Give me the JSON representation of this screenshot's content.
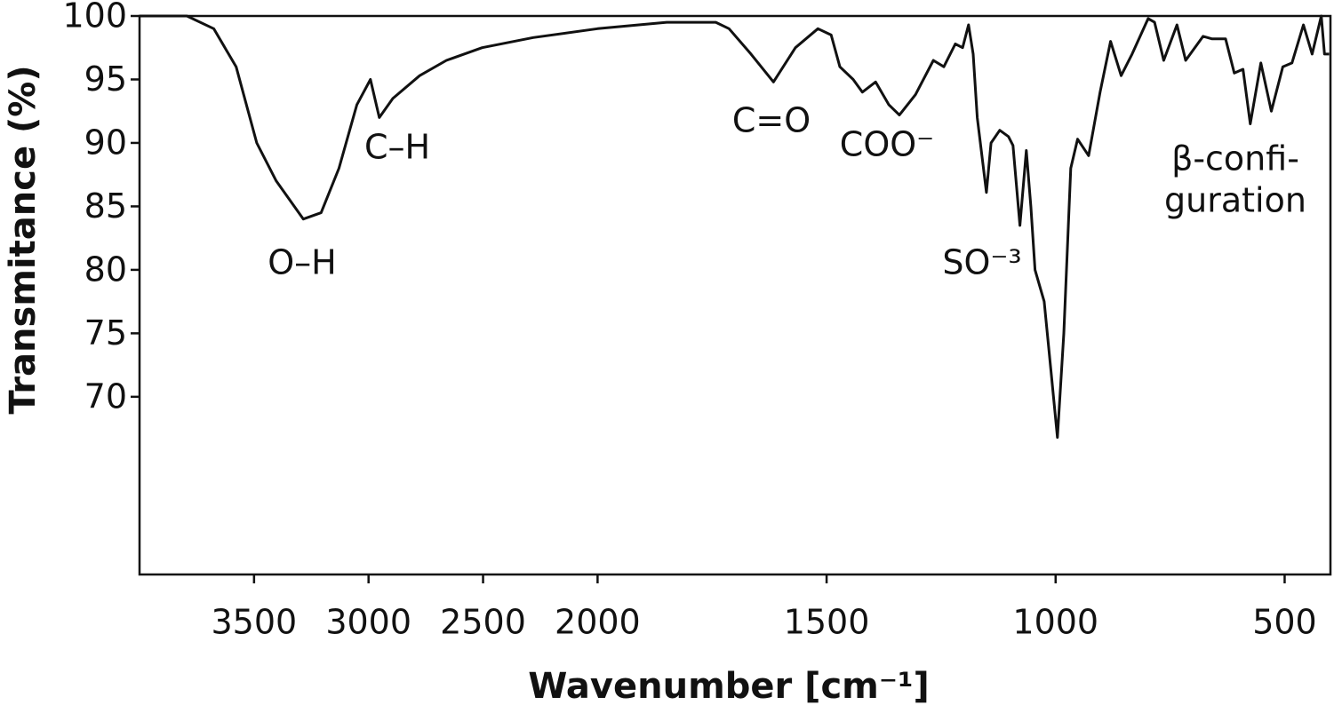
{
  "chart_data": {
    "type": "line",
    "xlabel": "Wavenumber [cm⁻¹]",
    "ylabel": "Transmitance (%)",
    "x": [
      4000,
      3793,
      3676,
      3578,
      3488,
      3403,
      3285,
      3207,
      3129,
      3051,
      2992,
      2953,
      2894,
      2777,
      2660,
      2504,
      2281,
      2000,
      1849,
      1742,
      1713,
      1665,
      1616,
      1568,
      1519,
      1490,
      1471,
      1442,
      1422,
      1393,
      1364,
      1341,
      1306,
      1267,
      1244,
      1219,
      1203,
      1190,
      1180,
      1171,
      1151,
      1141,
      1122,
      1103,
      1093,
      1078,
      1064,
      1054,
      1045,
      1025,
      1010,
      996,
      982,
      967,
      952,
      928,
      903,
      880,
      857,
      833,
      798,
      784,
      764,
      735,
      716,
      678,
      659,
      629,
      610,
      591,
      575,
      552,
      529,
      504,
      484,
      459,
      440,
      420,
      413,
      403
    ],
    "values": [
      100,
      100,
      99,
      96,
      90,
      87,
      84,
      84.5,
      88,
      93,
      95,
      92,
      93.5,
      95.3,
      96.5,
      97.5,
      98.3,
      99,
      99.5,
      99.5,
      99,
      97,
      94.8,
      97.5,
      99,
      98.5,
      96,
      95,
      94,
      94.8,
      93,
      92.2,
      93.8,
      96.5,
      96,
      97.8,
      97.5,
      99.3,
      97,
      92,
      86.1,
      90,
      91,
      90.5,
      89.8,
      83.5,
      89.4,
      85,
      80,
      77.5,
      72,
      66.8,
      75,
      88,
      90.3,
      89,
      94,
      98,
      95.3,
      97,
      99.8,
      99.5,
      96.5,
      99.3,
      96.5,
      98.4,
      98.2,
      98.2,
      95.5,
      95.8,
      91.5,
      96.3,
      92.5,
      96,
      96.3,
      99.3,
      97,
      100,
      97,
      97
    ],
    "color": "#111111",
    "xlim": [
      4000,
      400
    ],
    "x_scale_break": 2000,
    "xticks": [
      3500,
      3000,
      2500,
      2000,
      1500,
      1000,
      500
    ],
    "ylim": [
      56,
      100
    ],
    "yticks": [
      70,
      75,
      80,
      85,
      90,
      95,
      100
    ],
    "annotations": [
      "O–H",
      "C–H",
      "C=O",
      "COO⁻",
      "SO⁻³",
      "β-confi-",
      "guration"
    ]
  }
}
